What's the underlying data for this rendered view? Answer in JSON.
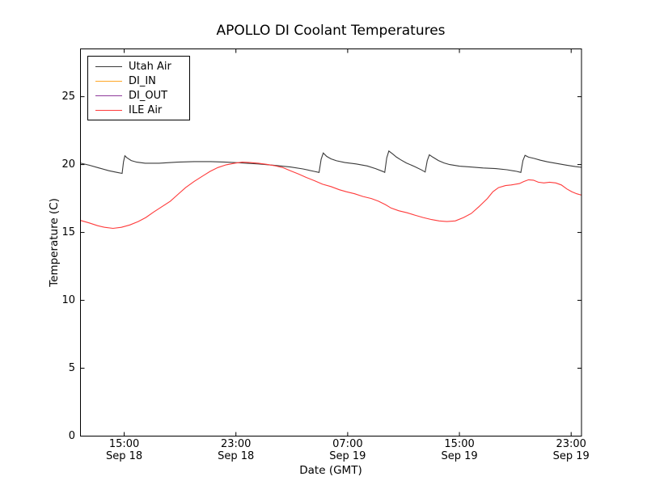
{
  "title": "APOLLO DI Coolant Temperatures",
  "legend": {
    "items": [
      {
        "label": "Utah Air",
        "color": "#3a3a3a"
      },
      {
        "label": "DI_IN",
        "color": "#ffa726"
      },
      {
        "label": "DI_OUT",
        "color": "#8e3a9a"
      },
      {
        "label": "ILE Air",
        "color": "#ff3b3b"
      }
    ]
  },
  "chart_data": {
    "type": "line",
    "title": "APOLLO DI Coolant Temperatures",
    "xlabel": "Date (GMT)",
    "ylabel": "Temperature (C)",
    "grid": false,
    "legend_position": "upper left",
    "x_unit": "hours since Sep 18 00:00 GMT",
    "xlim": [
      11.87,
      47.74
    ],
    "ylim": [
      0,
      28.52
    ],
    "yticks": [
      0,
      5,
      10,
      15,
      20,
      25
    ],
    "xticks": [
      {
        "hour": 15,
        "time": "15:00",
        "date": "Sep 18"
      },
      {
        "hour": 23,
        "time": "23:00",
        "date": "Sep 18"
      },
      {
        "hour": 31,
        "time": "07:00",
        "date": "Sep 19"
      },
      {
        "hour": 39,
        "time": "15:00",
        "date": "Sep 19"
      },
      {
        "hour": 47,
        "time": "23:00",
        "date": "Sep 19"
      }
    ],
    "series": [
      {
        "name": "Utah Air",
        "color": "#3a3a3a",
        "opacity": 1,
        "points": [
          [
            11.9,
            20.1
          ],
          [
            12.5,
            19.95
          ],
          [
            13.2,
            19.75
          ],
          [
            13.9,
            19.55
          ],
          [
            14.5,
            19.42
          ],
          [
            14.85,
            19.35
          ],
          [
            14.95,
            20.2
          ],
          [
            15.05,
            20.65
          ],
          [
            15.2,
            20.5
          ],
          [
            15.5,
            20.3
          ],
          [
            15.9,
            20.18
          ],
          [
            16.5,
            20.1
          ],
          [
            17.5,
            20.1
          ],
          [
            18.8,
            20.18
          ],
          [
            20.0,
            20.22
          ],
          [
            21.2,
            20.22
          ],
          [
            22.3,
            20.18
          ],
          [
            23.4,
            20.12
          ],
          [
            24.6,
            20.05
          ],
          [
            25.7,
            19.95
          ],
          [
            26.9,
            19.82
          ],
          [
            27.8,
            19.68
          ],
          [
            28.6,
            19.5
          ],
          [
            28.95,
            19.42
          ],
          [
            29.1,
            20.4
          ],
          [
            29.25,
            20.85
          ],
          [
            29.5,
            20.6
          ],
          [
            29.8,
            20.42
          ],
          [
            30.2,
            20.28
          ],
          [
            30.8,
            20.15
          ],
          [
            31.6,
            20.05
          ],
          [
            32.4,
            19.9
          ],
          [
            33.0,
            19.7
          ],
          [
            33.55,
            19.48
          ],
          [
            33.65,
            19.42
          ],
          [
            33.8,
            20.5
          ],
          [
            33.95,
            21.0
          ],
          [
            34.2,
            20.8
          ],
          [
            34.5,
            20.55
          ],
          [
            34.8,
            20.35
          ],
          [
            35.2,
            20.12
          ],
          [
            35.8,
            19.85
          ],
          [
            36.3,
            19.6
          ],
          [
            36.55,
            19.45
          ],
          [
            36.7,
            20.3
          ],
          [
            36.85,
            20.72
          ],
          [
            37.1,
            20.55
          ],
          [
            37.5,
            20.3
          ],
          [
            37.9,
            20.12
          ],
          [
            38.3,
            20.0
          ],
          [
            39.0,
            19.88
          ],
          [
            39.8,
            19.82
          ],
          [
            40.7,
            19.75
          ],
          [
            41.6,
            19.7
          ],
          [
            42.4,
            19.62
          ],
          [
            43.1,
            19.5
          ],
          [
            43.4,
            19.42
          ],
          [
            43.55,
            20.3
          ],
          [
            43.7,
            20.68
          ],
          [
            43.95,
            20.55
          ],
          [
            44.35,
            20.45
          ],
          [
            44.8,
            20.32
          ],
          [
            45.3,
            20.2
          ],
          [
            46.0,
            20.08
          ],
          [
            46.7,
            19.95
          ],
          [
            47.3,
            19.85
          ],
          [
            47.74,
            19.8
          ]
        ]
      },
      {
        "name": "DI_IN",
        "color": "#ffa726",
        "opacity": 0.9,
        "points": [
          [
            11.87,
            0
          ],
          [
            47.74,
            0
          ]
        ]
      },
      {
        "name": "DI_OUT",
        "color": "#8e3a9a",
        "opacity": 0.55,
        "points": [
          [
            11.87,
            0
          ],
          [
            47.74,
            0
          ]
        ]
      },
      {
        "name": "ILE Air",
        "color": "#ff3b3b",
        "opacity": 1,
        "points": [
          [
            11.9,
            15.88
          ],
          [
            12.5,
            15.7
          ],
          [
            13.1,
            15.5
          ],
          [
            13.6,
            15.38
          ],
          [
            14.2,
            15.3
          ],
          [
            14.8,
            15.38
          ],
          [
            15.4,
            15.55
          ],
          [
            16.0,
            15.8
          ],
          [
            16.55,
            16.1
          ],
          [
            17.1,
            16.5
          ],
          [
            17.7,
            16.9
          ],
          [
            18.3,
            17.3
          ],
          [
            18.85,
            17.8
          ],
          [
            19.4,
            18.3
          ],
          [
            20.0,
            18.75
          ],
          [
            20.6,
            19.15
          ],
          [
            21.15,
            19.5
          ],
          [
            21.7,
            19.78
          ],
          [
            22.3,
            19.98
          ],
          [
            22.9,
            20.1
          ],
          [
            23.45,
            20.18
          ],
          [
            24.0,
            20.15
          ],
          [
            24.6,
            20.1
          ],
          [
            25.2,
            20.02
          ],
          [
            25.75,
            19.92
          ],
          [
            26.35,
            19.78
          ],
          [
            26.9,
            19.55
          ],
          [
            27.5,
            19.3
          ],
          [
            28.05,
            19.05
          ],
          [
            28.65,
            18.8
          ],
          [
            29.2,
            18.55
          ],
          [
            29.8,
            18.38
          ],
          [
            30.4,
            18.15
          ],
          [
            30.9,
            18.0
          ],
          [
            31.5,
            17.85
          ],
          [
            32.1,
            17.65
          ],
          [
            32.7,
            17.5
          ],
          [
            33.2,
            17.3
          ],
          [
            33.7,
            17.05
          ],
          [
            34.1,
            16.8
          ],
          [
            34.65,
            16.6
          ],
          [
            35.25,
            16.45
          ],
          [
            35.8,
            16.28
          ],
          [
            36.4,
            16.1
          ],
          [
            37.0,
            15.95
          ],
          [
            37.55,
            15.85
          ],
          [
            38.1,
            15.8
          ],
          [
            38.7,
            15.85
          ],
          [
            39.3,
            16.1
          ],
          [
            39.85,
            16.4
          ],
          [
            40.4,
            16.9
          ],
          [
            41.0,
            17.5
          ],
          [
            41.4,
            18.0
          ],
          [
            41.8,
            18.3
          ],
          [
            42.3,
            18.45
          ],
          [
            42.7,
            18.5
          ],
          [
            43.3,
            18.6
          ],
          [
            43.6,
            18.75
          ],
          [
            43.95,
            18.88
          ],
          [
            44.3,
            18.85
          ],
          [
            44.65,
            18.7
          ],
          [
            45.05,
            18.65
          ],
          [
            45.45,
            18.7
          ],
          [
            45.9,
            18.65
          ],
          [
            46.3,
            18.5
          ],
          [
            46.7,
            18.2
          ],
          [
            47.05,
            18.0
          ],
          [
            47.4,
            17.85
          ],
          [
            47.74,
            17.75
          ]
        ]
      }
    ]
  }
}
